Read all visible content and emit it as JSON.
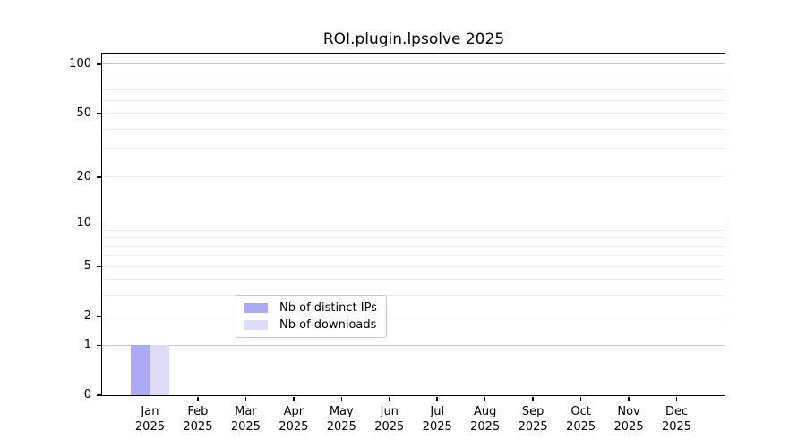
{
  "title": "ROI.plugin.lpsolve 2025",
  "chart_data": {
    "type": "bar",
    "title": "ROI.plugin.lpsolve 2025",
    "scale": "log1p",
    "categories": [
      "Jan",
      "Feb",
      "Mar",
      "Apr",
      "May",
      "Jun",
      "Jul",
      "Aug",
      "Sep",
      "Oct",
      "Nov",
      "Dec"
    ],
    "x_sublabel": "2025",
    "series": [
      {
        "name": "Nb of distinct IPs",
        "color": "#abaaf5",
        "values": [
          1,
          0,
          0,
          0,
          0,
          0,
          0,
          0,
          0,
          0,
          0,
          0
        ]
      },
      {
        "name": "Nb of downloads",
        "color": "#ddddf7",
        "values": [
          1,
          0,
          0,
          0,
          0,
          0,
          0,
          0,
          0,
          0,
          0,
          0
        ]
      }
    ],
    "xlabel": "",
    "ylabel": "",
    "y_ticks": [
      0,
      1,
      2,
      5,
      10,
      20,
      50,
      100
    ],
    "y_major_gridlines": [
      1,
      10,
      100
    ],
    "y_minor_gridlines": [
      2,
      3,
      4,
      5,
      6,
      7,
      8,
      9,
      20,
      30,
      40,
      50,
      60,
      70,
      80,
      90
    ],
    "ylim": [
      0,
      116
    ],
    "grid": true,
    "legend_position": "bottom-center"
  },
  "colors": {
    "bar_distinct_ips": "#abaaf5",
    "bar_downloads": "#ddddf7",
    "grid_minor": "#ececec",
    "grid_major": "#c9c9c9",
    "spine": "#000000",
    "text": "#000000",
    "legend_border": "#c8c8c8"
  }
}
